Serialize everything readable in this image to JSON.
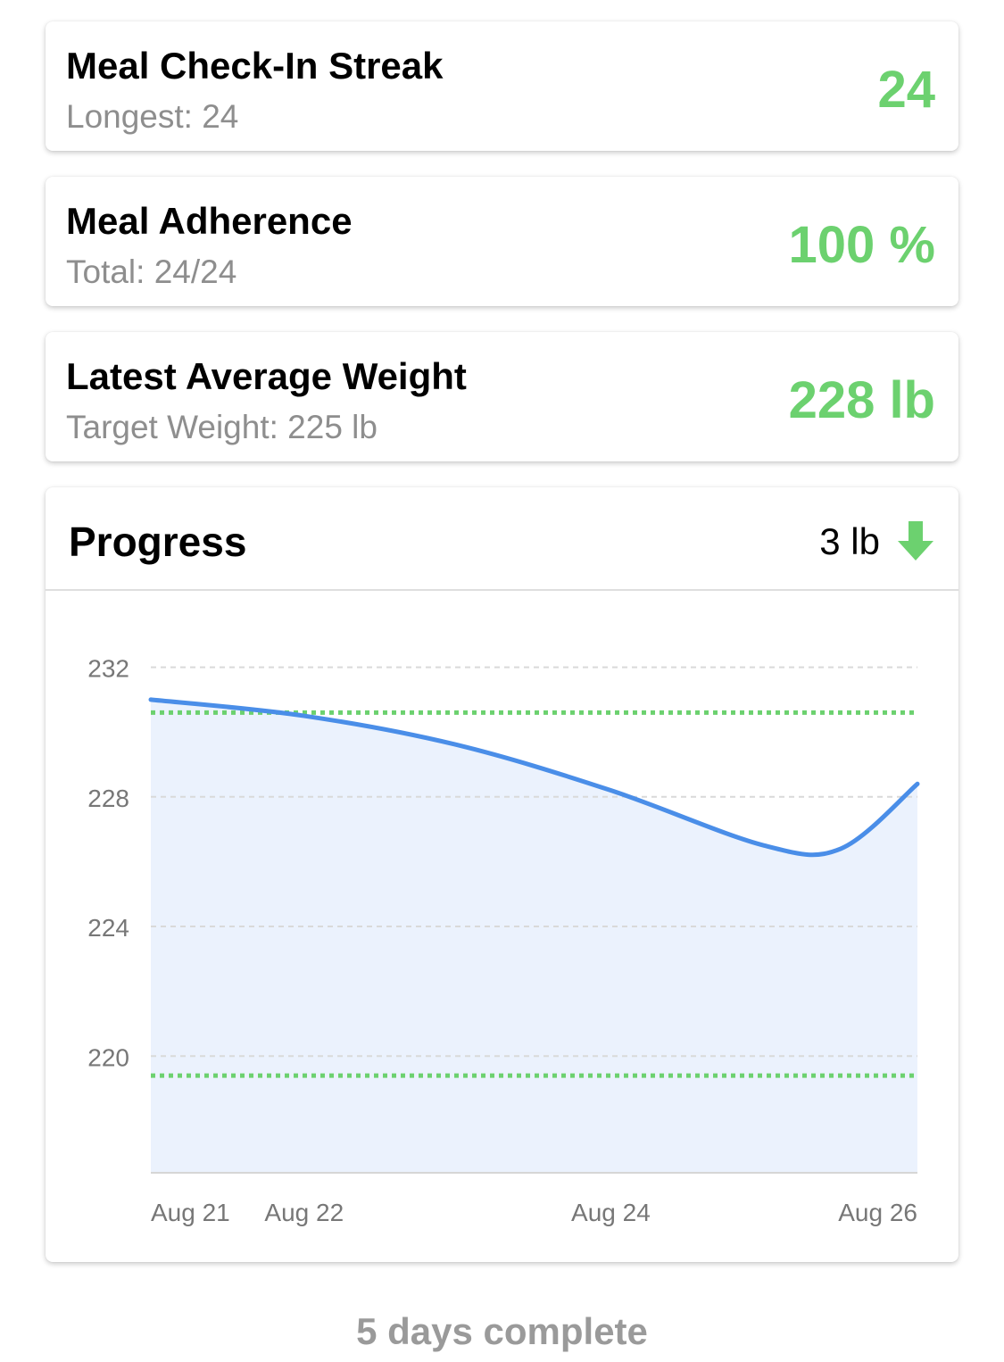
{
  "cards": {
    "streak": {
      "title": "Meal Check-In Streak",
      "subtitle": "Longest: 24",
      "value": "24"
    },
    "adherence": {
      "title": "Meal Adherence",
      "subtitle": "Total: 24/24",
      "value": "100 %"
    },
    "weight": {
      "title": "Latest Average Weight",
      "subtitle": "Target Weight: 225 lb",
      "value": "228 lb"
    }
  },
  "progress": {
    "title": "Progress",
    "change": "3 lb",
    "change_icon": "arrow-down-icon"
  },
  "footer": {
    "text": "5 days complete"
  },
  "colors": {
    "accent_green": "#6cd16f",
    "line_blue": "#4a8ee8",
    "area_fill": "#ebf2fd",
    "target_dotted": "#6cd16f"
  },
  "chart_data": {
    "type": "area",
    "x_tick_labels": [
      "Aug 21",
      "Aug 22",
      "Aug 24",
      "Aug 26"
    ],
    "x_tick_dates": [
      "2024-08-21",
      "2024-08-22",
      "2024-08-24",
      "2024-08-26"
    ],
    "series": [
      {
        "x": [
          "2024-08-21",
          "2024-08-22",
          "2024-08-23",
          "2024-08-24",
          "2024-08-25",
          "2024-08-25T12:00",
          "2024-08-26"
        ],
        "values": [
          231.0,
          230.5,
          229.6,
          228.2,
          226.5,
          226.4,
          228.4
        ]
      }
    ],
    "reference_lines": [
      230.6,
      219.4
    ],
    "y_ticks": [
      220,
      224,
      228,
      232
    ],
    "ylim": [
      216.4,
      233.2
    ],
    "xlim": [
      "2024-08-21",
      "2024-08-26"
    ],
    "grid": true,
    "legend": "none"
  }
}
